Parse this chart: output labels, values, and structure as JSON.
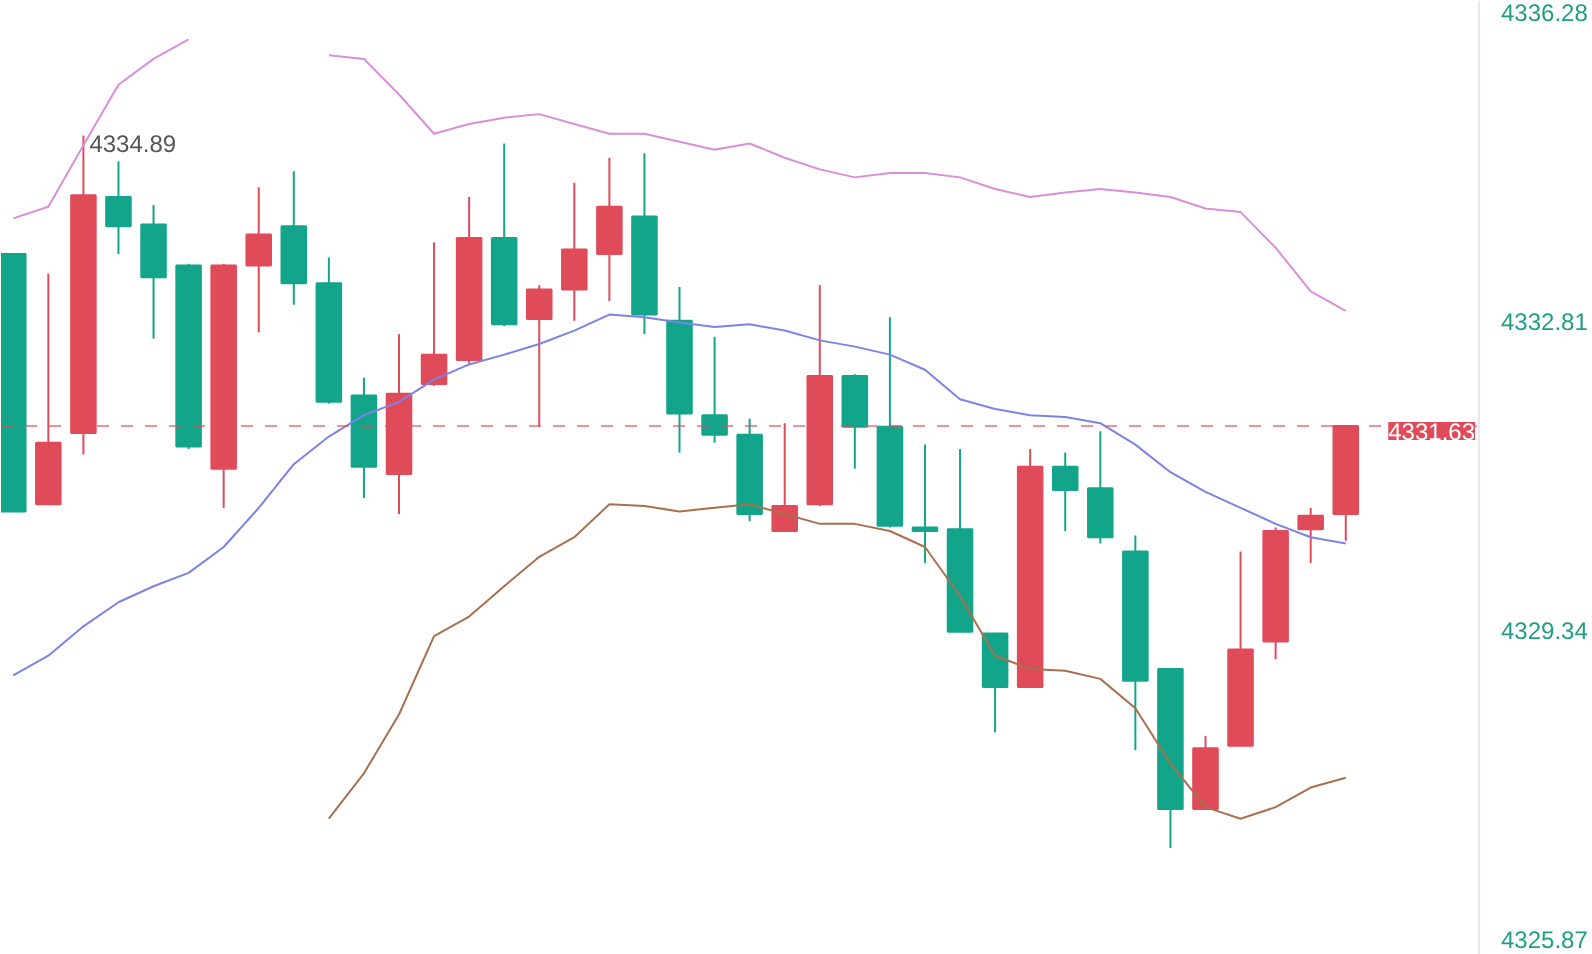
{
  "chart_data": {
    "type": "candlestick",
    "categories": [
      null,
      null,
      null,
      null,
      null,
      null,
      null,
      null,
      null,
      null,
      null,
      null,
      null,
      null,
      null,
      null,
      null,
      null,
      null,
      null,
      null,
      null,
      null,
      null,
      null,
      null,
      null,
      null,
      null,
      null,
      null,
      null,
      null,
      null,
      null,
      null,
      null,
      null,
      null
    ],
    "ohlc": [
      [
        4333.56,
        4333.56,
        4330.67,
        4330.67
      ],
      [
        4330.75,
        4333.34,
        4330.75,
        4331.44
      ],
      [
        4331.55,
        4334.89,
        4331.31,
        4334.22
      ],
      [
        4334.2,
        4334.6,
        4333.56,
        4333.87
      ],
      [
        4333.89,
        4334.11,
        4332.61,
        4333.3
      ],
      [
        4333.43,
        4333.45,
        4331.37,
        4331.4
      ],
      [
        4331.15,
        4333.45,
        4330.71,
        4333.43
      ],
      [
        4333.43,
        4334.31,
        4332.68,
        4333.78
      ],
      [
        4333.87,
        4334.49,
        4332.99,
        4333.23
      ],
      [
        4333.23,
        4333.52,
        4331.88,
        4331.9
      ],
      [
        4331.97,
        4332.17,
        4330.82,
        4331.17
      ],
      [
        4331.09,
        4332.66,
        4330.64,
        4331.99
      ],
      [
        4332.1,
        4333.69,
        4332.08,
        4332.43
      ],
      [
        4332.37,
        4334.2,
        4332.33,
        4333.74
      ],
      [
        4333.74,
        4334.8,
        4332.75,
        4332.77
      ],
      [
        4332.83,
        4333.21,
        4331.62,
        4333.16
      ],
      [
        4333.16,
        4334.36,
        4332.81,
        4333.61
      ],
      [
        4333.56,
        4334.64,
        4333.03,
        4334.09
      ],
      [
        4333.98,
        4334.69,
        4332.66,
        4332.88
      ],
      [
        4332.81,
        4333.19,
        4331.33,
        4331.77
      ],
      [
        4331.75,
        4332.63,
        4331.44,
        4331.53
      ],
      [
        4331.53,
        4331.71,
        4330.56,
        4330.64
      ],
      [
        4330.45,
        4331.66,
        4330.45,
        4330.73
      ],
      [
        4330.75,
        4333.21,
        4330.73,
        4332.19
      ],
      [
        4332.19,
        4332.21,
        4331.15,
        4331.62
      ],
      [
        4331.62,
        4332.85,
        4330.49,
        4330.51
      ],
      [
        4330.49,
        4331.42,
        4330.09,
        4330.45
      ],
      [
        4330.47,
        4331.37,
        4329.32,
        4329.32
      ],
      [
        4329.3,
        4329.3,
        4328.19,
        4328.7
      ],
      [
        4328.7,
        4331.37,
        4328.7,
        4331.17
      ],
      [
        4331.17,
        4331.33,
        4330.45,
        4330.91
      ],
      [
        4330.93,
        4331.57,
        4330.31,
        4330.38
      ],
      [
        4330.22,
        4330.4,
        4327.99,
        4328.77
      ],
      [
        4328.9,
        4328.9,
        4326.89,
        4327.33
      ],
      [
        4327.33,
        4328.15,
        4327.33,
        4328.01
      ],
      [
        4328.04,
        4330.22,
        4328.04,
        4329.12
      ],
      [
        4329.21,
        4330.49,
        4329.01,
        4330.45
      ],
      [
        4330.47,
        4330.71,
        4330.09,
        4330.62
      ],
      [
        4330.64,
        4331.63,
        4330.34,
        4331.63
      ]
    ],
    "colors": [
      "#12a58a",
      "#e04b5a",
      "#e04b5a",
      "#12a58a",
      "#12a58a",
      "#12a58a",
      "#e04b5a",
      "#e04b5a",
      "#12a58a",
      "#12a58a",
      "#12a58a",
      "#e04b5a",
      "#e04b5a",
      "#e04b5a",
      "#12a58a",
      "#e04b5a",
      "#e04b5a",
      "#e04b5a",
      "#12a58a",
      "#12a58a",
      "#12a58a",
      "#12a58a",
      "#e04b5a",
      "#e04b5a",
      "#12a58a",
      "#12a58a",
      "#12a58a",
      "#12a58a",
      "#12a58a",
      "#e04b5a",
      "#12a58a",
      "#12a58a",
      "#12a58a",
      "#12a58a",
      "#e04b5a",
      "#e04b5a",
      "#e04b5a",
      "#e04b5a",
      "#e04b5a"
    ],
    "series": [
      {
        "type": "line",
        "color": "#d88fd8",
        "values": [
          4333.96,
          4334.09,
          4334.78,
          4335.46,
          4335.75,
          4335.97,
          null,
          null,
          null,
          4335.79,
          4335.75,
          4335.35,
          4334.91,
          4335.02,
          4335.09,
          4335.13,
          4335.02,
          4334.91,
          4334.91,
          4334.82,
          4334.73,
          4334.8,
          4334.64,
          4334.51,
          4334.42,
          4334.47,
          4334.47,
          4334.42,
          4334.29,
          4334.2,
          4334.25,
          4334.29,
          4334.25,
          4334.2,
          4334.07,
          4334.03,
          4333.63,
          4333.14,
          4332.92
        ]
      },
      {
        "type": "line",
        "color": "#7b83e6",
        "values": [
          4328.83,
          4329.05,
          4329.38,
          4329.65,
          4329.83,
          4329.98,
          4330.27,
          4330.71,
          4331.2,
          4331.51,
          4331.75,
          4331.9,
          4332.15,
          4332.32,
          4332.43,
          4332.55,
          4332.7,
          4332.88,
          4332.85,
          4332.79,
          4332.74,
          4332.77,
          4332.7,
          4332.59,
          4332.52,
          4332.43,
          4332.26,
          4331.93,
          4331.82,
          4331.75,
          4331.73,
          4331.66,
          4331.42,
          4331.11,
          4330.89,
          4330.71,
          4330.53,
          4330.38,
          4330.31
        ]
      },
      {
        "type": "line",
        "color": "#a9704f",
        "values": [
          null,
          null,
          null,
          null,
          null,
          null,
          null,
          null,
          null,
          4327.22,
          4327.73,
          4328.39,
          4329.27,
          4329.49,
          4329.83,
          4330.16,
          4330.38,
          4330.75,
          4330.73,
          4330.67,
          4330.71,
          4330.75,
          4330.64,
          4330.53,
          4330.53,
          4330.45,
          4330.27,
          4329.72,
          4329.05,
          4328.9,
          4328.88,
          4328.79,
          4328.46,
          4327.84,
          4327.35,
          4327.22,
          4327.35,
          4327.57,
          4327.68
        ]
      }
    ],
    "ylim": [
      4325.69,
      4336.4
    ],
    "yticks": [
      4325.87,
      4329.34,
      4332.81,
      4336.28
    ],
    "tick_labels": "y",
    "ref_lines": [
      {
        "axis": "y",
        "value": 4331.63,
        "label": "4331.63",
        "color": "#e04b5a",
        "line_style": "dashed"
      }
    ],
    "annotations": [
      "4334.89"
    ]
  }
}
